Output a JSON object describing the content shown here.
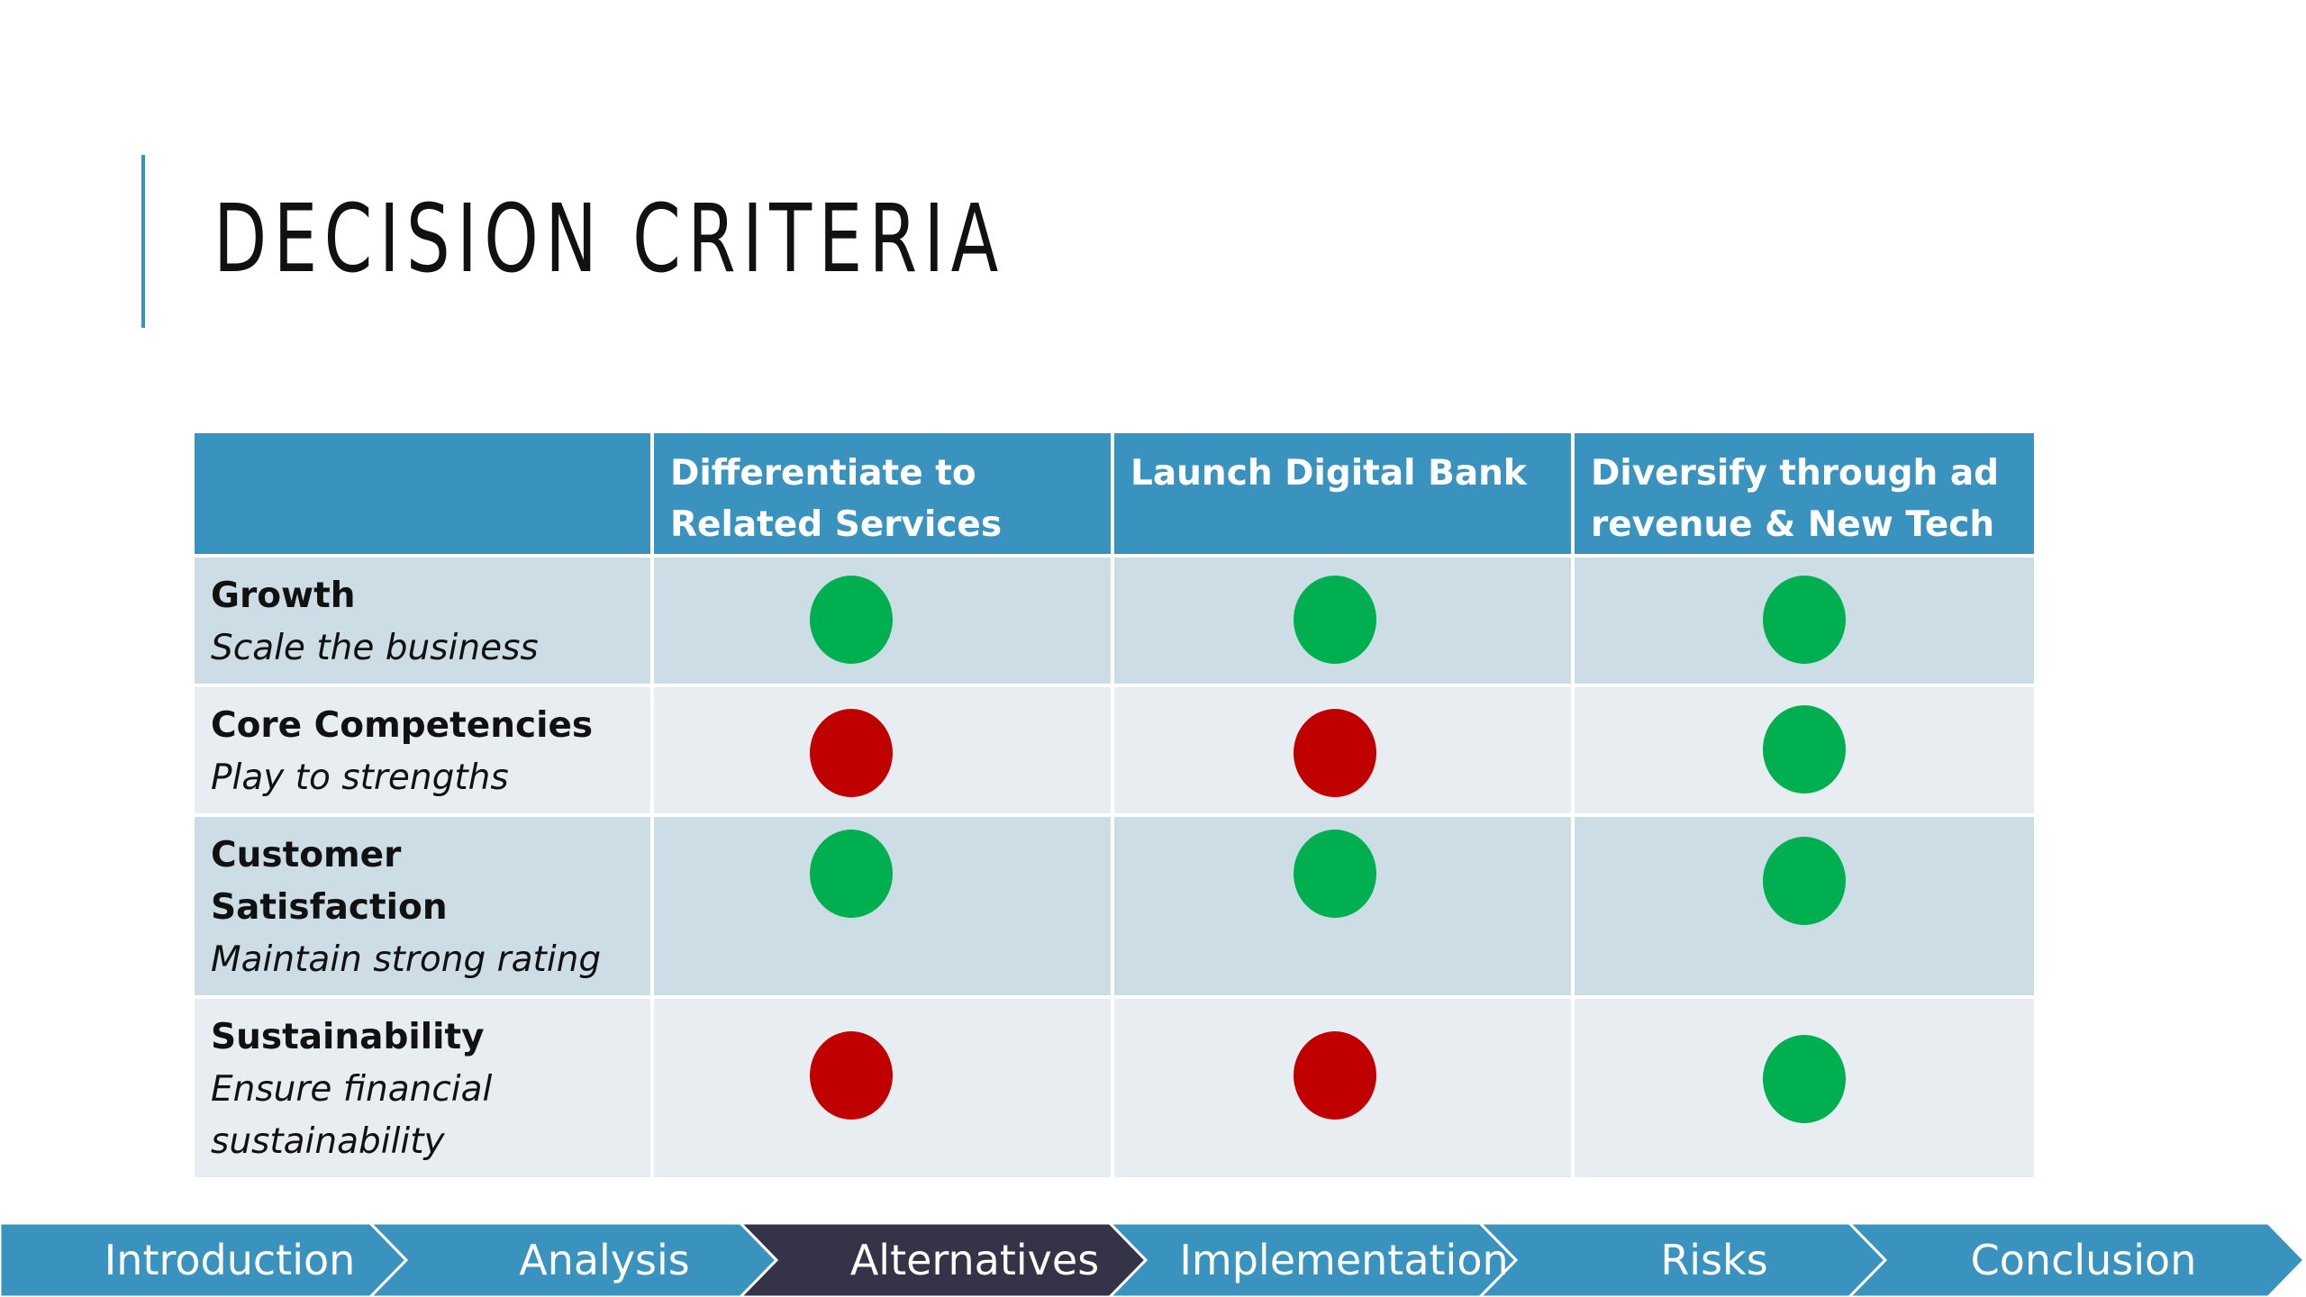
{
  "slide": {
    "title": "DECISION CRITERIA"
  },
  "matrix": {
    "header_blank": "",
    "columns": [
      "Differentiate to Related Services",
      "Launch Digital Bank",
      "Diversify through ad revenue & New Tech"
    ],
    "rows": [
      {
        "name": "Growth",
        "description": "Scale the business",
        "ratings": [
          "green",
          "green",
          "green"
        ]
      },
      {
        "name": "Core Competencies",
        "description": "Play to strengths",
        "ratings": [
          "red",
          "red",
          "green"
        ]
      },
      {
        "name": "Customer Satisfaction",
        "description": "Maintain strong rating",
        "ratings": [
          "green",
          "green",
          "green"
        ]
      },
      {
        "name": "Sustainability",
        "description": "Ensure financial sustainability",
        "ratings": [
          "red",
          "red",
          "green"
        ]
      }
    ],
    "colors": {
      "header": "#3a93bf",
      "row_odd": "#cddde6",
      "row_even": "#e8edf2",
      "green": "#00b050",
      "red": "#c00000"
    }
  },
  "nav": {
    "steps": [
      {
        "label": "Introduction",
        "active": false
      },
      {
        "label": "Analysis",
        "active": false
      },
      {
        "label": "Alternatives",
        "active": true
      },
      {
        "label": "Implementation",
        "active": false
      },
      {
        "label": "Risks",
        "active": false
      },
      {
        "label": "Conclusion",
        "active": false
      }
    ],
    "colors": {
      "step": "#3a93bf",
      "active": "#353347"
    }
  }
}
